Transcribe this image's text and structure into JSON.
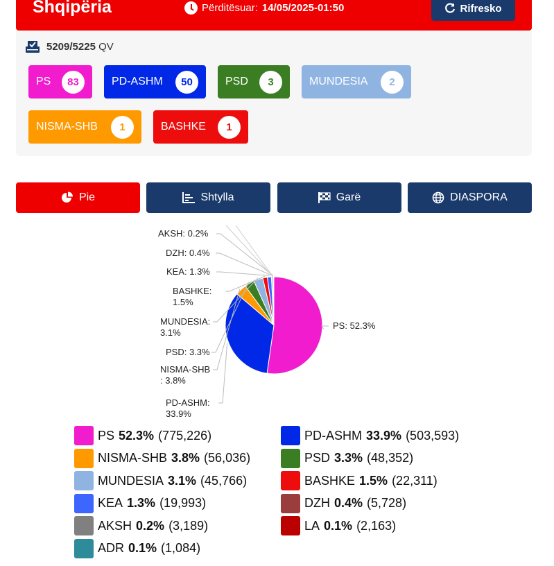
{
  "header": {
    "title": "Shqipëria",
    "updated_label": "Përditësuar:",
    "updated_value": "14/05/2025-01:50",
    "refresh_label": "Rifresko"
  },
  "summary": {
    "stations_count": "5209/5225",
    "stations_unit": "QV"
  },
  "seats": [
    {
      "party": "PS",
      "seats": "83",
      "color": "#f01ccd"
    },
    {
      "party": "PD-ASHM",
      "seats": "50",
      "color": "#0028e6"
    },
    {
      "party": "PSD",
      "seats": "3",
      "color": "#3b7d23"
    },
    {
      "party": "MUNDESIA",
      "seats": "2",
      "color": "#90b4e2"
    },
    {
      "party": "NISMA-SHB",
      "seats": "1",
      "color": "#ff9900"
    },
    {
      "party": "BASHKE",
      "seats": "1",
      "color": "#ee0d0d"
    }
  ],
  "tabs": [
    {
      "label": "Pie",
      "icon": "pie-chart-icon"
    },
    {
      "label": "Shtylla",
      "icon": "bar-chart-icon"
    },
    {
      "label": "Garë",
      "icon": "race-flag-icon"
    },
    {
      "label": "DIASPORA",
      "icon": "globe-icon"
    }
  ],
  "chart_data": {
    "type": "pie",
    "series": [
      {
        "name": "PS",
        "percent": 52.3,
        "votes": 775226,
        "pct_label": "52.3%",
        "votes_label": "(775,226)",
        "pie_label": "PS: 52.3%",
        "color": "#f01ccd"
      },
      {
        "name": "PD-ASHM",
        "percent": 33.9,
        "votes": 503593,
        "pct_label": "33.9%",
        "votes_label": "(503,593)",
        "pie_label": "PD-ASHM: 33.9%",
        "color": "#0028e6"
      },
      {
        "name": "NISMA-SHB",
        "percent": 3.8,
        "votes": 56036,
        "pct_label": "3.8%",
        "votes_label": "(56,036)",
        "pie_label": "NISMA-SHB: 3.8%",
        "color": "#ff9900"
      },
      {
        "name": "PSD",
        "percent": 3.3,
        "votes": 48352,
        "pct_label": "3.3%",
        "votes_label": "(48,352)",
        "pie_label": "PSD: 3.3%",
        "color": "#3b7d23"
      },
      {
        "name": "MUNDESIA",
        "percent": 3.1,
        "votes": 45766,
        "pct_label": "3.1%",
        "votes_label": "(45,766)",
        "pie_label": "MUNDESIA: 3.1%",
        "color": "#90b4e2"
      },
      {
        "name": "BASHKE",
        "percent": 1.5,
        "votes": 22311,
        "pct_label": "1.5%",
        "votes_label": "(22,311)",
        "pie_label": "BASHKE: 1.5%",
        "color": "#ee0d0d"
      },
      {
        "name": "KEA",
        "percent": 1.3,
        "votes": 19993,
        "pct_label": "1.3%",
        "votes_label": "(19,993)",
        "pie_label": "KEA: 1.3%",
        "color": "#3d66ff"
      },
      {
        "name": "DZH",
        "percent": 0.4,
        "votes": 5728,
        "pct_label": "0.4%",
        "votes_label": "(5,728)",
        "pie_label": "DZH: 0.4%",
        "color": "#993d3d"
      },
      {
        "name": "AKSH",
        "percent": 0.2,
        "votes": 3189,
        "pct_label": "0.2%",
        "votes_label": "(3,189)",
        "pie_label": "AKSH: 0.2%",
        "color": "#808080"
      },
      {
        "name": "LA",
        "percent": 0.1,
        "votes": 2163,
        "pct_label": "0.1%",
        "votes_label": "(2,163)",
        "pie_label": "",
        "color": "#bb0000"
      },
      {
        "name": "ADR",
        "percent": 0.1,
        "votes": 1084,
        "pct_label": "0.1%",
        "votes_label": "(1,084)",
        "pie_label": "",
        "color": "#2e8b99"
      }
    ]
  }
}
